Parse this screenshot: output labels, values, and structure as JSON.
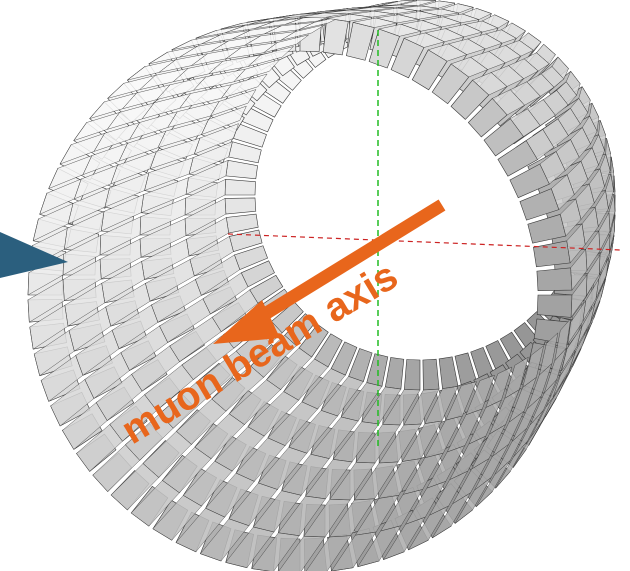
{
  "diagram": {
    "annotation": {
      "text": "muon beam axis",
      "color": "#e8661c"
    },
    "pointer_color": "#2b5f7e",
    "tile_fill": "#d6d6d6",
    "tile_shade_light": "#f2f2f2",
    "tile_shade_dark": "#9a9a9a",
    "gap_color": "#3a3a3a",
    "axes": {
      "x_color": "#cc2222",
      "y_color": "#22bb22"
    }
  }
}
